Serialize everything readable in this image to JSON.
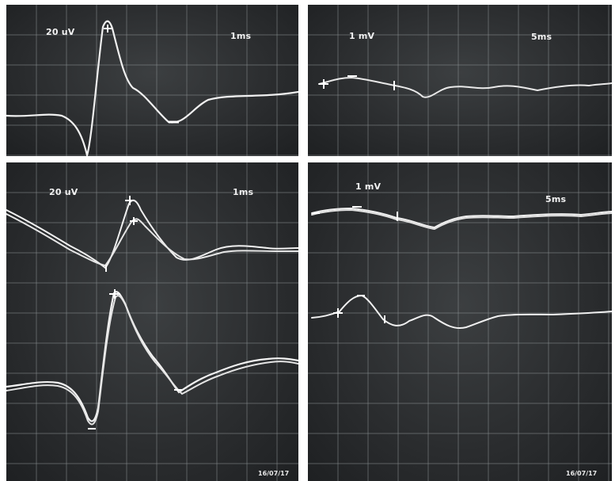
{
  "colors": {
    "screen": "#2d2f31",
    "grid": "#8a8f92",
    "trace": "#f0f0f0",
    "divider": "#ffffff"
  },
  "panels": [
    {
      "id": "top-left",
      "amplitude_label": "20 uV",
      "time_label": "1ms",
      "stamp": ""
    },
    {
      "id": "top-right",
      "amplitude_label": "1 mV",
      "time_label": "5ms",
      "stamp": ""
    },
    {
      "id": "bottom-left",
      "amplitude_label": "20 uV",
      "time_label": "1ms",
      "stamp": "16/07/17"
    },
    {
      "id": "bottom-right",
      "amplitude_label": "1 mV",
      "time_label": "5ms",
      "stamp": "16/07/17"
    }
  ]
}
